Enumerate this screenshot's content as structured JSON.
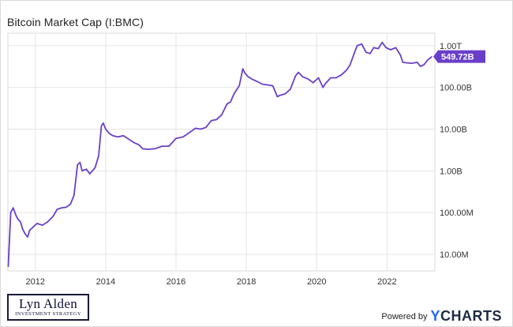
{
  "title": "Bitcoin Market Cap (I:BMC)",
  "branding": {
    "logo_name": "Lyn Alden",
    "logo_tagline": "INVESTMENT STRATEGY",
    "powered_by": "Powered by",
    "ycharts_y": "Y",
    "ycharts_rest": "CHARTS"
  },
  "colors": {
    "line": "#6a3fc8",
    "badge": "#6a3fc8",
    "grid": "#e4e4e4"
  },
  "chart_data": {
    "type": "line",
    "title": "Bitcoin Market Cap (I:BMC)",
    "xlabel": "",
    "ylabel": "",
    "yscale": "log",
    "xlim": [
      2011.22,
      2023.36
    ],
    "ylim": [
      4000000,
      2000000000000
    ],
    "grid": true,
    "x_ticks": [
      {
        "value": 2012,
        "label": "2012"
      },
      {
        "value": 2014,
        "label": "2014"
      },
      {
        "value": 2016,
        "label": "2016"
      },
      {
        "value": 2018,
        "label": "2018"
      },
      {
        "value": 2020,
        "label": "2020"
      },
      {
        "value": 2022,
        "label": "2022"
      }
    ],
    "y_ticks": [
      {
        "value": 10000000,
        "label": "10.00M"
      },
      {
        "value": 100000000,
        "label": "100.00M"
      },
      {
        "value": 1000000000,
        "label": "1.00B"
      },
      {
        "value": 10000000000,
        "label": "10.00B"
      },
      {
        "value": 100000000000,
        "label": "100.00B"
      },
      {
        "value": 1000000000000,
        "label": "1.00T"
      }
    ],
    "last_value_label": "549.72B",
    "series": [
      {
        "x": [
          2011.23,
          2011.3,
          2011.37,
          2011.44,
          2011.5,
          2011.58,
          2011.64,
          2011.72,
          2011.78,
          2011.84,
          2011.9,
          2011.97,
          2012.05,
          2012.2,
          2012.35,
          2012.5,
          2012.62,
          2012.75,
          2012.88,
          2013.0,
          2013.1,
          2013.2,
          2013.27,
          2013.33,
          2013.45,
          2013.55,
          2013.7,
          2013.8,
          2013.88,
          2013.93,
          2014.0,
          2014.1,
          2014.2,
          2014.35,
          2014.5,
          2014.65,
          2014.8,
          2014.95,
          2015.05,
          2015.2,
          2015.4,
          2015.6,
          2015.8,
          2016.0,
          2016.2,
          2016.4,
          2016.55,
          2016.7,
          2016.85,
          2017.0,
          2017.15,
          2017.3,
          2017.45,
          2017.55,
          2017.65,
          2017.8,
          2017.9,
          2017.96,
          2018.05,
          2018.15,
          2018.3,
          2018.45,
          2018.6,
          2018.75,
          2018.88,
          2018.96,
          2019.1,
          2019.25,
          2019.4,
          2019.48,
          2019.6,
          2019.75,
          2019.9,
          2020.05,
          2020.18,
          2020.25,
          2020.4,
          2020.55,
          2020.7,
          2020.85,
          2020.95,
          2021.05,
          2021.15,
          2021.28,
          2021.4,
          2021.52,
          2021.62,
          2021.75,
          2021.86,
          2021.97,
          2022.1,
          2022.25,
          2022.38,
          2022.45,
          2022.55,
          2022.7,
          2022.86,
          2022.95,
          2023.05,
          2023.15,
          2023.28
        ],
        "y": [
          5000000,
          100000000,
          130000000,
          90000000,
          70000000,
          60000000,
          40000000,
          30000000,
          26000000,
          38000000,
          42000000,
          48000000,
          55000000,
          50000000,
          60000000,
          80000000,
          120000000,
          130000000,
          135000000,
          160000000,
          260000000,
          1400000000,
          1600000000,
          1000000000,
          1100000000,
          850000000,
          1200000000,
          2300000000,
          12000000000,
          14000000000,
          10000000000,
          8000000000,
          7000000000,
          6500000000,
          7000000000,
          5800000000,
          4800000000,
          4200000000,
          3400000000,
          3300000000,
          3400000000,
          3900000000,
          3900000000,
          6000000000,
          6500000000,
          8500000000,
          10500000000,
          10000000000,
          11000000000,
          16000000000,
          17000000000,
          22000000000,
          40000000000,
          45000000000,
          70000000000,
          110000000000,
          280000000000,
          220000000000,
          180000000000,
          160000000000,
          140000000000,
          120000000000,
          115000000000,
          110000000000,
          60000000000,
          65000000000,
          70000000000,
          90000000000,
          190000000000,
          230000000000,
          180000000000,
          160000000000,
          130000000000,
          170000000000,
          100000000000,
          125000000000,
          170000000000,
          170000000000,
          200000000000,
          260000000000,
          350000000000,
          600000000000,
          1000000000000,
          1100000000000,
          700000000000,
          650000000000,
          900000000000,
          850000000000,
          1200000000000,
          900000000000,
          800000000000,
          900000000000,
          600000000000,
          400000000000,
          390000000000,
          380000000000,
          400000000000,
          320000000000,
          350000000000,
          450000000000,
          549720000000
        ]
      }
    ]
  }
}
